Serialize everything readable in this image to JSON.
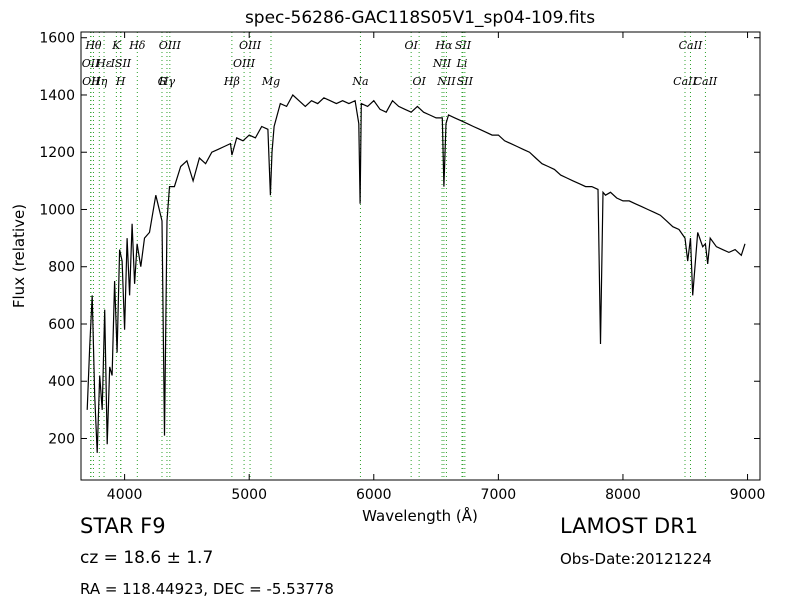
{
  "chart_data": {
    "type": "line",
    "title": "spec-56286-GAC118S05V1_sp04-109.fits",
    "xlabel": "Wavelength (Å)",
    "ylabel": "Flux (relative)",
    "xlim": [
      3650,
      9100
    ],
    "ylim": [
      55,
      1620
    ],
    "x_ticks": [
      4000,
      5000,
      6000,
      7000,
      8000,
      9000
    ],
    "y_ticks": [
      200,
      400,
      600,
      800,
      1000,
      1200,
      1400,
      1600
    ],
    "grid": false,
    "line_color": "#000000",
    "marker_color": "#2ca02c",
    "series": [
      {
        "x": [
          3700,
          3720,
          3740,
          3760,
          3780,
          3800,
          3820,
          3840,
          3860,
          3880,
          3900,
          3920,
          3940,
          3960,
          3980,
          4000,
          4020,
          4040,
          4060,
          4080,
          4100,
          4130,
          4160,
          4200,
          4250,
          4300,
          4320,
          4340,
          4360,
          4400,
          4450,
          4500,
          4550,
          4600,
          4650,
          4700,
          4750,
          4800,
          4850,
          4861,
          4900,
          4950,
          5000,
          5050,
          5100,
          5150,
          5170,
          5183,
          5200,
          5250,
          5300,
          5350,
          5400,
          5450,
          5500,
          5550,
          5600,
          5650,
          5700,
          5750,
          5800,
          5850,
          5880,
          5890,
          5900,
          5950,
          6000,
          6050,
          6100,
          6150,
          6200,
          6250,
          6300,
          6350,
          6400,
          6450,
          6500,
          6550,
          6563,
          6580,
          6600,
          6650,
          6700,
          6750,
          6800,
          6850,
          6900,
          6950,
          7000,
          7050,
          7100,
          7150,
          7200,
          7250,
          7300,
          7350,
          7400,
          7450,
          7500,
          7550,
          7600,
          7650,
          7700,
          7750,
          7800,
          7820,
          7840,
          7860,
          7900,
          7950,
          8000,
          8050,
          8100,
          8150,
          8200,
          8250,
          8300,
          8350,
          8400,
          8450,
          8498,
          8520,
          8542,
          8560,
          8600,
          8640,
          8662,
          8680,
          8700,
          8750,
          8800,
          8850,
          8900,
          8950,
          8980
        ],
        "y": [
          300,
          520,
          700,
          350,
          150,
          420,
          300,
          650,
          180,
          450,
          420,
          750,
          500,
          860,
          820,
          580,
          900,
          700,
          950,
          740,
          880,
          800,
          900,
          920,
          1050,
          960,
          210,
          960,
          1080,
          1080,
          1150,
          1170,
          1100,
          1180,
          1160,
          1200,
          1210,
          1220,
          1230,
          1190,
          1250,
          1240,
          1260,
          1250,
          1290,
          1280,
          1050,
          1200,
          1290,
          1370,
          1360,
          1400,
          1380,
          1360,
          1380,
          1370,
          1390,
          1380,
          1370,
          1380,
          1370,
          1380,
          1300,
          1020,
          1370,
          1360,
          1380,
          1350,
          1340,
          1380,
          1360,
          1350,
          1340,
          1360,
          1340,
          1330,
          1320,
          1320,
          1080,
          1300,
          1330,
          1320,
          1310,
          1300,
          1290,
          1280,
          1270,
          1260,
          1260,
          1240,
          1230,
          1220,
          1210,
          1200,
          1180,
          1160,
          1150,
          1140,
          1120,
          1110,
          1100,
          1090,
          1080,
          1080,
          1070,
          530,
          1060,
          1050,
          1060,
          1040,
          1030,
          1030,
          1020,
          1010,
          1000,
          990,
          980,
          960,
          940,
          930,
          900,
          820,
          900,
          700,
          920,
          870,
          880,
          810,
          900,
          870,
          860,
          850,
          860,
          840,
          880
        ]
      }
    ],
    "markers": [
      {
        "x": 3727,
        "label": "OII",
        "row": 1
      },
      {
        "x": 3730,
        "label": "OII",
        "row": 2
      },
      {
        "x": 3750,
        "label": "Hθ",
        "row": 0
      },
      {
        "x": 3797,
        "label": "Hη",
        "row": 2
      },
      {
        "x": 3835,
        "label": "Hε",
        "row": 1
      },
      {
        "x": 3934,
        "label": "K",
        "row": 0
      },
      {
        "x": 3968,
        "label": "H",
        "row": 2
      },
      {
        "x": 3970,
        "label": "ISII",
        "row": 1
      },
      {
        "x": 4102,
        "label": "Hδ",
        "row": 0
      },
      {
        "x": 4300,
        "label": "G",
        "row": 3
      },
      {
        "x": 4340,
        "label": "Hγ",
        "row": 2
      },
      {
        "x": 4363,
        "label": "OIII",
        "row": 0
      },
      {
        "x": 4861,
        "label": "Hβ",
        "row": 3
      },
      {
        "x": 4959,
        "label": "OIII",
        "row": 1
      },
      {
        "x": 5007,
        "label": "OIII",
        "row": 0
      },
      {
        "x": 5175,
        "label": "Mg",
        "row": 3
      },
      {
        "x": 5893,
        "label": "Na",
        "row": 2
      },
      {
        "x": 6300,
        "label": "OI",
        "row": 0
      },
      {
        "x": 6364,
        "label": "OI",
        "row": 3
      },
      {
        "x": 6548,
        "label": "NII",
        "row": 1
      },
      {
        "x": 6563,
        "label": "Hα",
        "row": 0
      },
      {
        "x": 6583,
        "label": "NII",
        "row": 3
      },
      {
        "x": 6708,
        "label": "Li",
        "row": 1
      },
      {
        "x": 6716,
        "label": "SII",
        "row": 0
      },
      {
        "x": 6731,
        "label": "SII",
        "row": 3
      },
      {
        "x": 8498,
        "label": "CaII",
        "row": 2
      },
      {
        "x": 8542,
        "label": "CaII",
        "row": 0
      },
      {
        "x": 8662,
        "label": "CaII",
        "row": 3
      }
    ]
  },
  "info": {
    "classification": "STAR   F9",
    "survey": "LAMOST DR1",
    "cz": "cz = 18.6  ± 1.7",
    "obs_date": "Obs-Date:20121224",
    "coords": "RA = 118.44923, DEC = -5.53778"
  }
}
